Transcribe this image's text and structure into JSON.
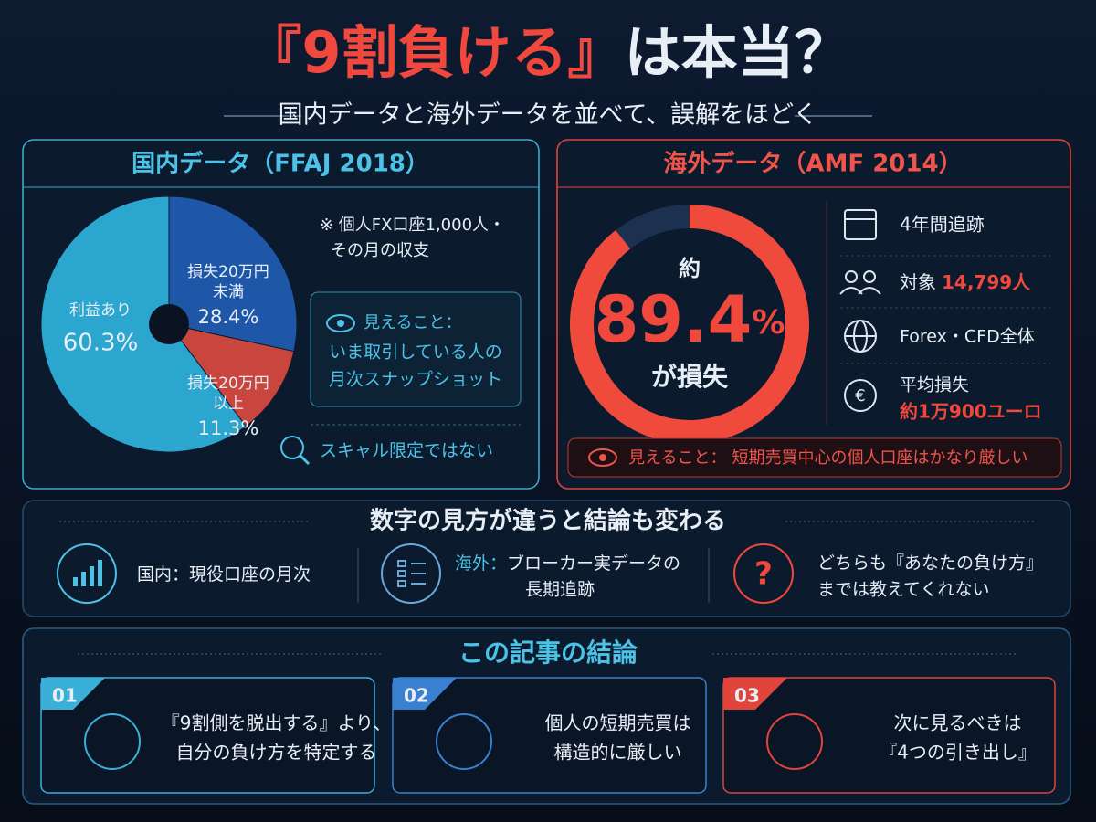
{
  "title": {
    "highlight": "『9割負ける』",
    "rest": "は本当？"
  },
  "subtitle": "国内データと海外データを並べて、誤解をほどく",
  "domestic": {
    "heading": "国内データ（FFAJ 2018）",
    "chart": {
      "type": "pie",
      "category_lines": [
        [
          "利益あり"
        ],
        [
          "損失20万円",
          "未満"
        ],
        [
          "損失20万円",
          "以上"
        ]
      ],
      "values": [
        60.3,
        28.4,
        11.3
      ],
      "value_labels": [
        "60.3%",
        "28.4%",
        "11.3%"
      ],
      "colors": [
        "#2aa6cf",
        "#1f57a8",
        "#c9463f"
      ]
    },
    "note": [
      "※ 個人FX口座1,000人・",
      "その月の収支"
    ],
    "visible": {
      "label": "見えること：",
      "lines": [
        "いま取引している人の",
        "月次スナップショット"
      ]
    },
    "scalp": "スキャル限定ではない"
  },
  "overseas": {
    "heading": "海外データ（AMF 2014）",
    "chart": {
      "type": "donut",
      "prefix": "約",
      "value": 89.4,
      "unit": "%",
      "suffix": "が損失",
      "total": 100,
      "color": "#ef4a3c",
      "rest_color": "#1c3150"
    },
    "facts": [
      {
        "label": "4年間追跡"
      },
      {
        "label": "対象",
        "value": "14,799人"
      },
      {
        "label": "Forex・CFD全体"
      },
      {
        "label": "平均損失",
        "value": "約1万900ユーロ"
      }
    ],
    "visible": {
      "label": "見えること：",
      "text": "短期売買中心の個人口座はかなり厳しい"
    }
  },
  "compare": {
    "title": "数字の見方が違うと結論も変わる",
    "items": [
      {
        "label": "国内：",
        "lines": [
          "現役口座の月次"
        ]
      },
      {
        "label": "海外：",
        "lines": [
          "ブローカー実データの",
          "長期追跡"
        ]
      },
      {
        "lines": [
          "どちらも『あなたの負け方』",
          "までは教えてくれない"
        ]
      }
    ]
  },
  "conclusion": {
    "title": "この記事の結論",
    "cards": [
      {
        "num": "01",
        "lines": [
          "『9割側を脱出する』より、",
          "自分の負け方を特定する"
        ]
      },
      {
        "num": "02",
        "lines": [
          "個人の短期売買は",
          "構造的に厳しい"
        ]
      },
      {
        "num": "03",
        "lines": [
          "次に見るべきは",
          "『4つの引き出し』"
        ]
      }
    ]
  }
}
